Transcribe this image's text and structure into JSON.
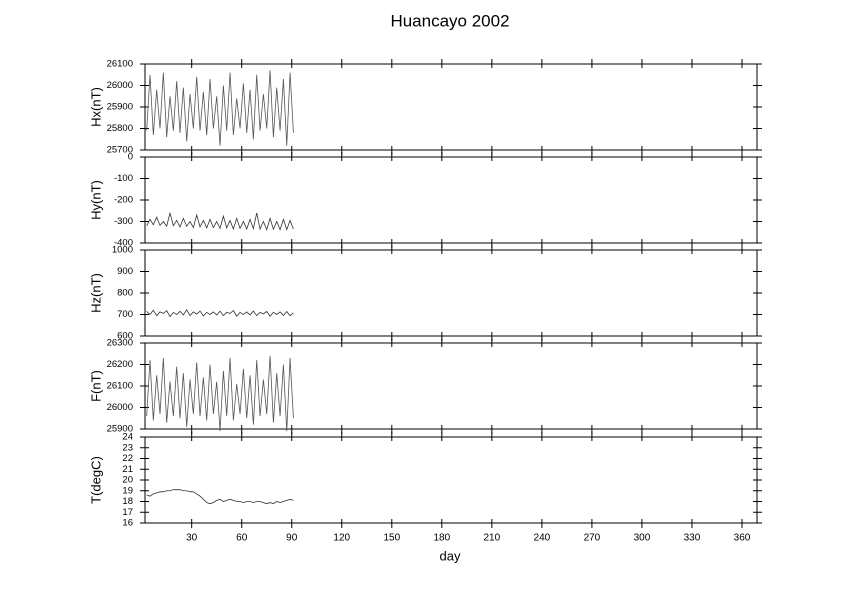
{
  "chart_data": [
    {
      "type": "line",
      "title": "Huancayo 2002",
      "ylabel": "Hx(nT)",
      "color": "#555555",
      "x": [
        3,
        5,
        7,
        9,
        11,
        13,
        15,
        17,
        19,
        21,
        23,
        25,
        27,
        29,
        31,
        33,
        35,
        37,
        39,
        41,
        43,
        45,
        47,
        49,
        51,
        53,
        55,
        57,
        59,
        61,
        63,
        65,
        67,
        69,
        71,
        73,
        75,
        77,
        79,
        81,
        83,
        85,
        87,
        89,
        91
      ],
      "values": [
        25790,
        26050,
        25770,
        25980,
        25800,
        26060,
        25760,
        25950,
        25790,
        26020,
        25780,
        25990,
        25740,
        25960,
        25800,
        26040,
        25790,
        25970,
        25770,
        26030,
        25800,
        25950,
        25720,
        26000,
        25790,
        26060,
        25770,
        25940,
        25800,
        26010,
        25780,
        25980,
        25750,
        26050,
        25790,
        25960,
        25800,
        26070,
        25760,
        25990,
        25790,
        26030,
        25720,
        26060,
        25780
      ],
      "xlim": [
        2,
        369
      ],
      "ylim": [
        25700,
        26100
      ],
      "yticks": [
        25700,
        25800,
        25900,
        26000,
        26100
      ]
    },
    {
      "type": "line",
      "ylabel": "Hy(nT)",
      "color": "#333333",
      "x": [
        3,
        5,
        7,
        9,
        11,
        13,
        15,
        17,
        19,
        21,
        23,
        25,
        27,
        29,
        31,
        33,
        35,
        37,
        39,
        41,
        43,
        45,
        47,
        49,
        51,
        53,
        55,
        57,
        59,
        61,
        63,
        65,
        67,
        69,
        71,
        73,
        75,
        77,
        79,
        81,
        83,
        85,
        87,
        89,
        91
      ],
      "values": [
        -320,
        -290,
        -315,
        -280,
        -318,
        -300,
        -322,
        -260,
        -320,
        -295,
        -325,
        -285,
        -322,
        -300,
        -328,
        -270,
        -325,
        -295,
        -330,
        -290,
        -328,
        -300,
        -332,
        -275,
        -330,
        -295,
        -335,
        -285,
        -332,
        -300,
        -335,
        -290,
        -333,
        -260,
        -335,
        -300,
        -338,
        -285,
        -336,
        -300,
        -338,
        -290,
        -338,
        -295,
        -335
      ],
      "xlim": [
        2,
        369
      ],
      "ylim": [
        -400,
        0
      ],
      "yticks": [
        -400,
        -300,
        -200,
        -100,
        0
      ]
    },
    {
      "type": "line",
      "ylabel": "Hz(nT)",
      "color": "#333333",
      "x": [
        3,
        5,
        7,
        9,
        11,
        13,
        15,
        17,
        19,
        21,
        23,
        25,
        27,
        29,
        31,
        33,
        35,
        37,
        39,
        41,
        43,
        45,
        47,
        49,
        51,
        53,
        55,
        57,
        59,
        61,
        63,
        65,
        67,
        69,
        71,
        73,
        75,
        77,
        79,
        81,
        83,
        85,
        87,
        89,
        91
      ],
      "values": [
        715,
        700,
        720,
        695,
        712,
        705,
        718,
        690,
        710,
        700,
        715,
        698,
        722,
        695,
        712,
        702,
        716,
        693,
        710,
        700,
        712,
        698,
        715,
        695,
        710,
        705,
        718,
        692,
        710,
        700,
        712,
        698,
        716,
        695,
        710,
        703,
        714,
        692,
        710,
        700,
        712,
        696,
        714,
        694,
        708
      ],
      "xlim": [
        2,
        369
      ],
      "ylim": [
        600,
        1000
      ],
      "yticks": [
        600,
        700,
        800,
        900,
        1000
      ]
    },
    {
      "type": "line",
      "ylabel": "F(nT)",
      "color": "#555555",
      "x": [
        3,
        5,
        7,
        9,
        11,
        13,
        15,
        17,
        19,
        21,
        23,
        25,
        27,
        29,
        31,
        33,
        35,
        37,
        39,
        41,
        43,
        45,
        47,
        49,
        51,
        53,
        55,
        57,
        59,
        61,
        63,
        65,
        67,
        69,
        71,
        73,
        75,
        77,
        79,
        81,
        83,
        85,
        87,
        89,
        91
      ],
      "values": [
        25960,
        26220,
        25940,
        26150,
        25970,
        26230,
        25930,
        26120,
        25960,
        26190,
        25950,
        26160,
        25910,
        26130,
        25970,
        26210,
        25960,
        26140,
        25940,
        26200,
        25970,
        26120,
        25890,
        26170,
        25960,
        26230,
        25940,
        26110,
        25970,
        26180,
        25950,
        26150,
        25920,
        26220,
        25960,
        26130,
        25970,
        26240,
        25930,
        26160,
        25960,
        26200,
        25890,
        26230,
        25950
      ],
      "xlim": [
        2,
        369
      ],
      "ylim": [
        25900,
        26300
      ],
      "yticks": [
        25900,
        26000,
        26100,
        26200,
        26300
      ]
    },
    {
      "type": "line",
      "ylabel": "T(degC)",
      "xlabel": "day",
      "color": "#333333",
      "x": [
        3,
        5,
        7,
        9,
        11,
        13,
        15,
        17,
        19,
        21,
        23,
        25,
        27,
        29,
        31,
        33,
        35,
        37,
        39,
        41,
        43,
        45,
        47,
        49,
        51,
        53,
        55,
        57,
        59,
        61,
        63,
        65,
        67,
        69,
        71,
        73,
        75,
        77,
        79,
        81,
        83,
        85,
        87,
        89,
        91
      ],
      "values": [
        18.6,
        18.5,
        18.7,
        18.8,
        18.9,
        18.9,
        19.0,
        19.0,
        19.1,
        19.1,
        19.1,
        19.0,
        19.0,
        18.9,
        18.9,
        18.7,
        18.5,
        18.2,
        17.9,
        17.8,
        17.9,
        18.1,
        18.2,
        18.0,
        18.1,
        18.2,
        18.1,
        18.0,
        18.0,
        17.9,
        18.0,
        18.0,
        17.9,
        18.0,
        18.0,
        17.9,
        17.8,
        17.9,
        17.8,
        18.0,
        17.9,
        18.0,
        18.1,
        18.2,
        18.1
      ],
      "xlim": [
        2,
        369
      ],
      "ylim": [
        16,
        24
      ],
      "yticks": [
        16,
        17,
        18,
        19,
        20,
        21,
        22,
        23,
        24
      ],
      "xticks": [
        30,
        60,
        90,
        120,
        150,
        180,
        210,
        240,
        270,
        300,
        330,
        360
      ]
    }
  ]
}
